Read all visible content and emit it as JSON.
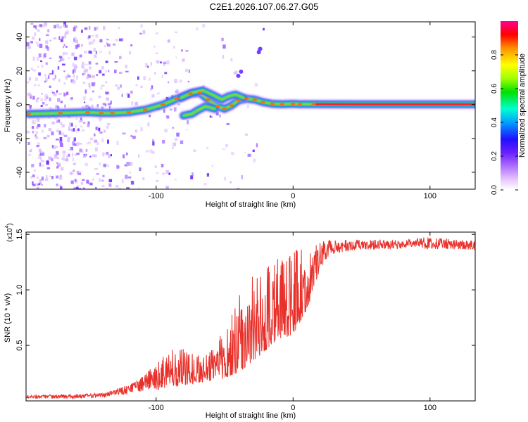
{
  "title": "C2E1.2026.107.06.27.G05",
  "chart_data": [
    {
      "type": "heatmap",
      "xlabel": "Height of straight line (km)",
      "ylabel": "Frequency (Hz)",
      "xlim": [
        -195,
        133
      ],
      "ylim": [
        -50,
        49
      ],
      "xticks": [
        -100,
        0,
        100
      ],
      "yticks": [
        -40,
        -20,
        0,
        20,
        40
      ],
      "colorbar": {
        "label": "Normalized spectral amplitude",
        "range": [
          0,
          1
        ],
        "ticks": [
          "0.0",
          "0.2",
          "0.4",
          "0.6",
          "0.8"
        ],
        "tick_values": [
          0.0,
          0.2,
          0.4,
          0.6,
          0.8
        ]
      },
      "traces": [
        {
          "name": "main",
          "points": [
            [
              -193,
              -5.5
            ],
            [
              -170,
              -5
            ],
            [
              -150,
              -4.5
            ],
            [
              -140,
              -5
            ],
            [
              -132,
              -5
            ],
            [
              -120,
              -4.5
            ],
            [
              -108,
              -3
            ],
            [
              -95,
              0
            ],
            [
              -85,
              3.5
            ],
            [
              -75,
              6.5
            ],
            [
              -68,
              7
            ],
            [
              -62,
              3
            ],
            [
              -55,
              -1
            ],
            [
              -50,
              -2.5
            ],
            [
              -45,
              -0.5
            ],
            [
              -40,
              2.5
            ],
            [
              -34,
              3.5
            ],
            [
              -28,
              3
            ],
            [
              -22,
              1.5
            ],
            [
              -15,
              0.5
            ],
            [
              -8,
              0.3
            ],
            [
              0,
              0.5
            ],
            [
              5,
              0.3
            ],
            [
              15,
              0.3
            ],
            [
              50,
              0.2
            ],
            [
              90,
              0.2
            ],
            [
              133,
              0.2
            ]
          ]
        },
        {
          "name": "upper",
          "points": [
            [
              -82,
              4
            ],
            [
              -74,
              7
            ],
            [
              -66,
              8.5
            ],
            [
              -58,
              5.5
            ],
            [
              -52,
              3
            ],
            [
              -47,
              5
            ],
            [
              -42,
              6
            ],
            [
              -36,
              4
            ]
          ]
        },
        {
          "name": "lower",
          "points": [
            [
              -80,
              -6.5
            ],
            [
              -74,
              -5.5
            ],
            [
              -70,
              -3.5
            ],
            [
              -64,
              -1
            ],
            [
              -57,
              -2.5
            ]
          ]
        }
      ],
      "blobs": [
        {
          "x": -40,
          "y": 17
        },
        {
          "x": -38,
          "y": 19.5
        },
        {
          "x": -25,
          "y": 31
        },
        {
          "x": -24,
          "y": 33
        }
      ]
    },
    {
      "type": "line",
      "xlabel": "Height of straight line (km)",
      "ylabel": "SNR (10 * v/v)",
      "multiplier": "(x10",
      "multiplier_exp": "4",
      "multiplier_close": ")",
      "xlim": [
        -195,
        133
      ],
      "ylim": [
        0,
        1.52
      ],
      "xticks": [
        -100,
        0,
        100
      ],
      "yticks": [
        "0.5",
        "1.0",
        "1.5"
      ],
      "ytick_values": [
        0.5,
        1.0,
        1.5
      ],
      "series": [
        {
          "name": "SNR",
          "color": "#e8302a",
          "envelope_x": [
            -195,
            -160,
            -140,
            -130,
            -120,
            -110,
            -100,
            -90,
            -80,
            -70,
            -60,
            -50,
            -40,
            -30,
            -20,
            -10,
            0,
            10,
            15,
            20,
            30,
            50,
            80,
            90,
            95,
            133
          ],
          "envelope_lo": [
            0.02,
            0.02,
            0.03,
            0.05,
            0.06,
            0.08,
            0.1,
            0.12,
            0.14,
            0.16,
            0.18,
            0.2,
            0.25,
            0.35,
            0.45,
            0.55,
            0.6,
            0.8,
            1.0,
            1.2,
            1.33,
            1.36,
            1.37,
            1.38,
            1.37,
            1.36
          ],
          "envelope_hi": [
            0.05,
            0.06,
            0.07,
            0.1,
            0.15,
            0.22,
            0.35,
            0.45,
            0.5,
            0.4,
            0.45,
            0.7,
            1.0,
            1.15,
            1.2,
            1.3,
            1.35,
            1.4,
            1.42,
            1.44,
            1.45,
            1.45,
            1.45,
            1.46,
            1.48,
            1.44
          ]
        }
      ]
    }
  ]
}
